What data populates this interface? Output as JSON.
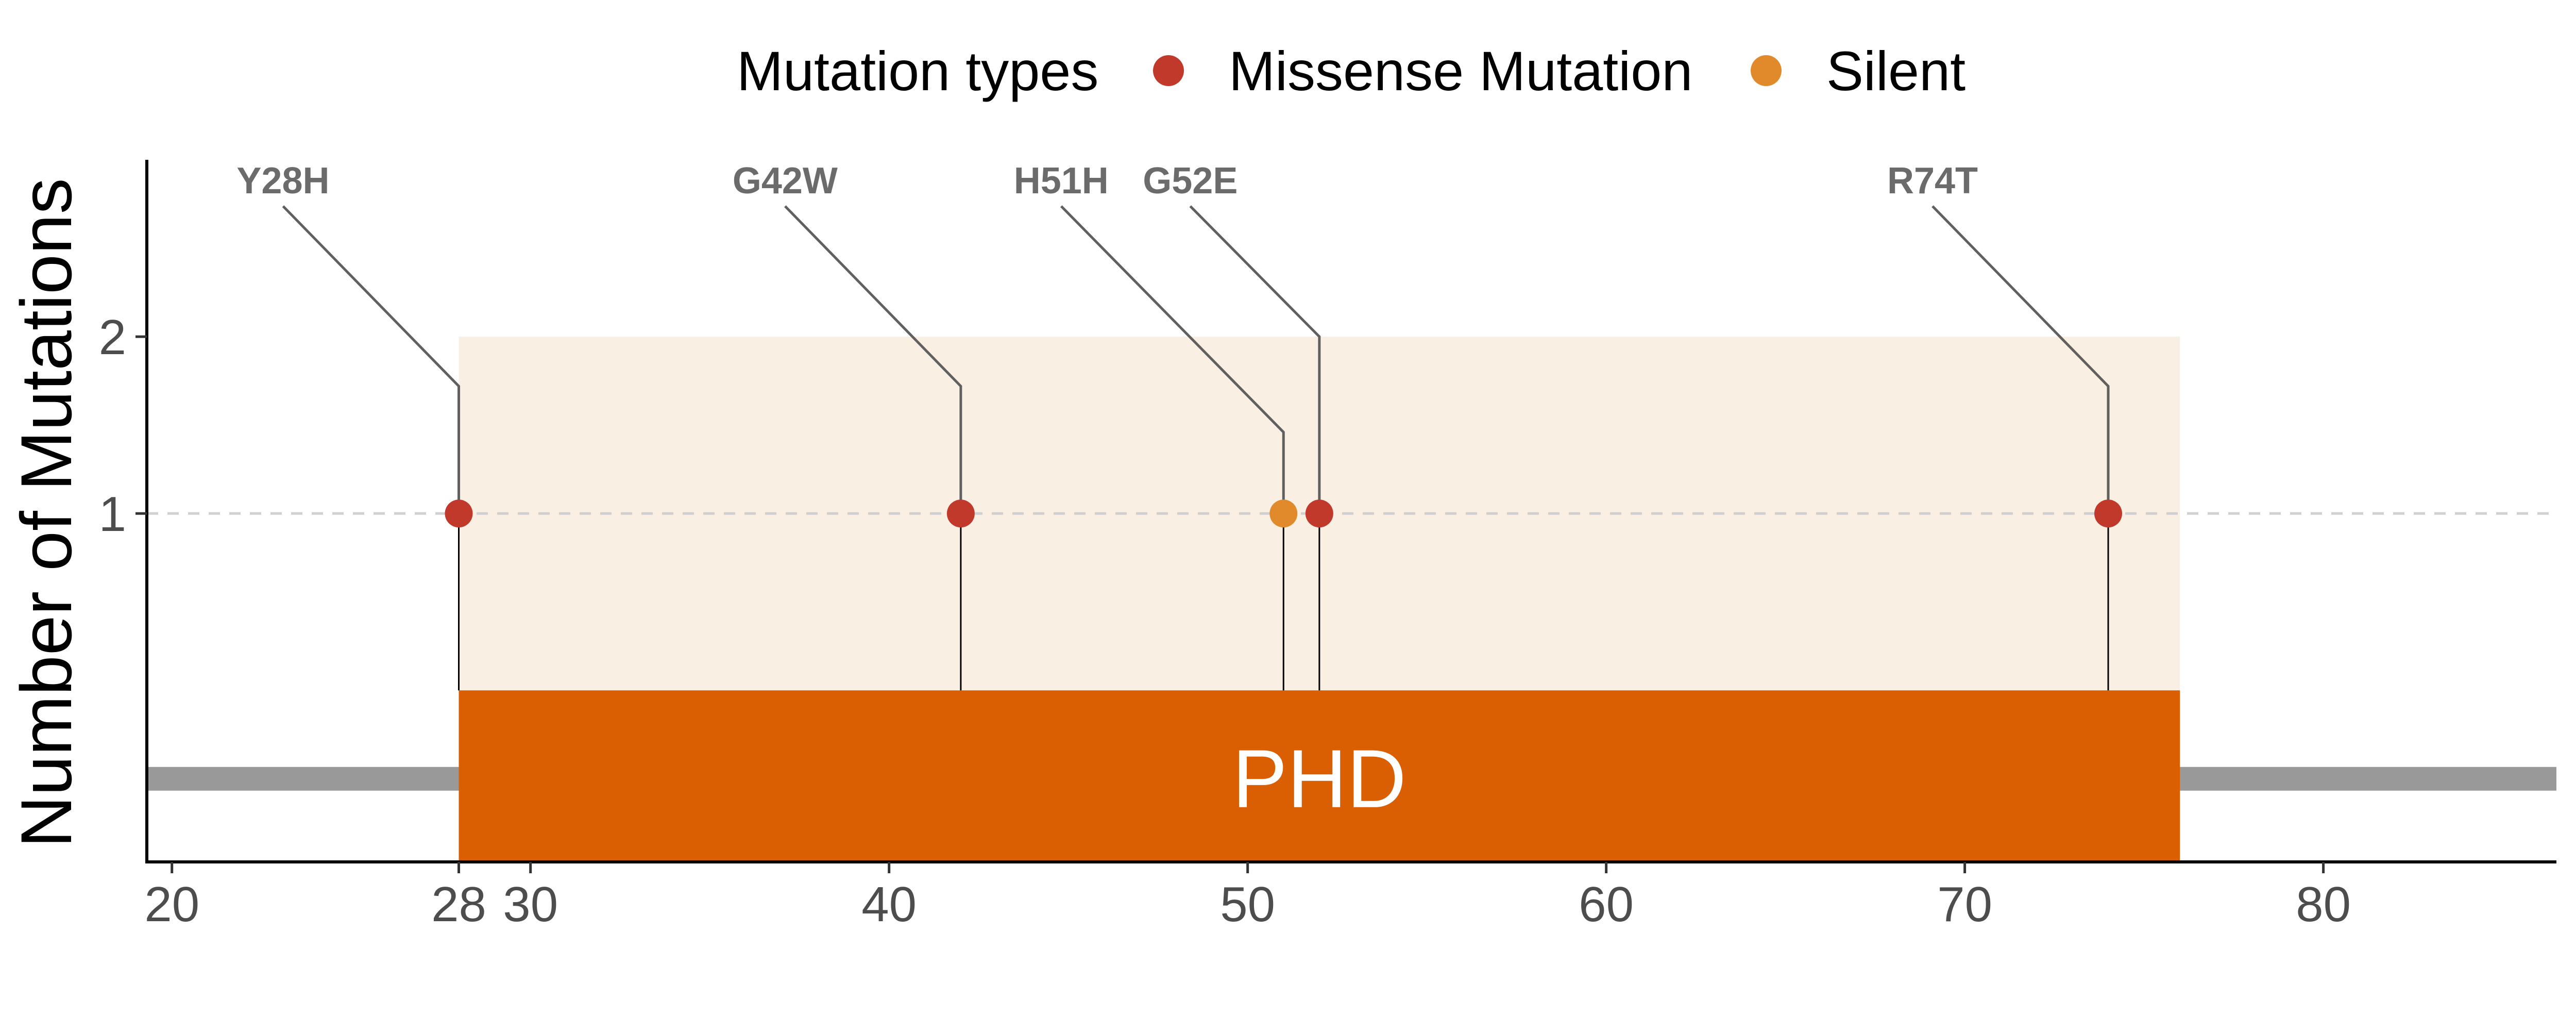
{
  "chart_data": {
    "type": "scatter",
    "title": "",
    "xlabel": "",
    "ylabel": "Number of Mutations",
    "xlim": [
      19.3,
      86.5
    ],
    "ylim": [
      -0.97,
      3.0
    ],
    "x_ticks": [
      20,
      28,
      30,
      40,
      50,
      60,
      70,
      80
    ],
    "y_ticks": [
      1,
      2
    ],
    "gridline_y": 1,
    "protein_range": [
      0,
      86.5
    ],
    "legend": {
      "title": "Mutation types",
      "placement": "top",
      "entries": [
        {
          "name": "Missense Mutation",
          "color": "#c0392b"
        },
        {
          "name": "Silent",
          "color": "#e08a2c"
        }
      ]
    },
    "domains": [
      {
        "name": "PHD",
        "start": 28,
        "end": 76,
        "color": "#d95f02",
        "highlight_color": "#f9f0e3",
        "highlight_top": 2
      }
    ],
    "mutations": [
      {
        "label": "Y28H",
        "position": 28,
        "count": 1,
        "type": "Missense Mutation"
      },
      {
        "label": "G42W",
        "position": 42,
        "count": 1,
        "type": "Missense Mutation"
      },
      {
        "label": "H51H",
        "position": 51,
        "count": 1,
        "type": "Silent"
      },
      {
        "label": "G52E",
        "position": 52,
        "count": 1,
        "type": "Missense Mutation"
      },
      {
        "label": "R74T",
        "position": 74,
        "count": 1,
        "type": "Missense Mutation"
      }
    ]
  },
  "colors": {
    "backbone": "#999999",
    "lollipop_stem": "#000000",
    "label_connector": "#606060",
    "gridline": "#d0d0d0",
    "axis": "#000000"
  }
}
